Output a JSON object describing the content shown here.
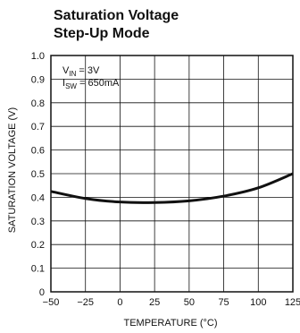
{
  "chart_data": {
    "type": "line",
    "title_line1": "Saturation Voltage",
    "title_line2": "Step-Up Mode",
    "xlabel": "TEMPERATURE (°C)",
    "ylabel": "SATURATION VOLTAGE (V)",
    "xlim": [
      -50,
      125
    ],
    "ylim": [
      0,
      1.0
    ],
    "x_ticks": [
      -50,
      -25,
      0,
      25,
      50,
      75,
      100,
      125
    ],
    "x_tick_labels": [
      "−50",
      "−25",
      "0",
      "25",
      "50",
      "75",
      "100",
      "125"
    ],
    "y_ticks": [
      0,
      0.1,
      0.2,
      0.3,
      0.4,
      0.5,
      0.6,
      0.7,
      0.8,
      0.9,
      1.0
    ],
    "y_tick_labels": [
      "0",
      "0.1",
      "0.2",
      "0.3",
      "0.4",
      "0.5",
      "0.6",
      "0.7",
      "0.8",
      "0.9",
      "1.0"
    ],
    "grid": true,
    "annotation": {
      "vin_main": "V",
      "vin_sub": "IN",
      "vin_value": " = 3V",
      "isw_main": "I",
      "isw_sub": "SW",
      "isw_value": " = 650mA"
    },
    "series": [
      {
        "x": [
          -50,
          -25,
          0,
          25,
          50,
          75,
          100,
          125
        ],
        "y": [
          0.425,
          0.395,
          0.38,
          0.378,
          0.385,
          0.405,
          0.44,
          0.5
        ]
      }
    ]
  }
}
